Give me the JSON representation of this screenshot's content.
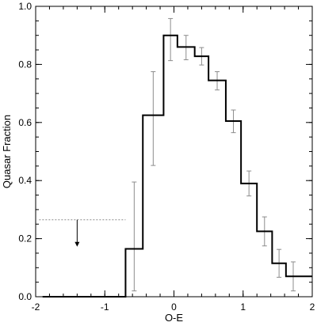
{
  "chart_data": {
    "type": "step",
    "xlabel": "O-E",
    "ylabel": "Quasar Fraction",
    "xlim": [
      -2,
      2
    ],
    "ylim": [
      0,
      1
    ],
    "xticks": [
      "-2",
      "-1",
      "0",
      "1",
      "2"
    ],
    "yticks": [
      "0.0",
      "0.2",
      "0.4",
      "0.6",
      "0.8",
      "1.0"
    ],
    "grid": false,
    "legend": "none",
    "bins": [
      {
        "x0": -1.9,
        "x1": -0.7,
        "y": 0.0,
        "err_lo": null,
        "err_hi": null
      },
      {
        "x0": -0.7,
        "x1": -0.45,
        "y": 0.165,
        "err_lo": 0.02,
        "err_hi": 0.395
      },
      {
        "x0": -0.45,
        "x1": -0.15,
        "y": 0.625,
        "err_lo": 0.452,
        "err_hi": 0.775
      },
      {
        "x0": -0.15,
        "x1": 0.05,
        "y": 0.9,
        "err_lo": 0.813,
        "err_hi": 0.958
      },
      {
        "x0": 0.05,
        "x1": 0.3,
        "y": 0.86,
        "err_lo": 0.816,
        "err_hi": 0.9
      },
      {
        "x0": 0.3,
        "x1": 0.5,
        "y": 0.828,
        "err_lo": 0.798,
        "err_hi": 0.858
      },
      {
        "x0": 0.5,
        "x1": 0.75,
        "y": 0.745,
        "err_lo": 0.712,
        "err_hi": 0.775
      },
      {
        "x0": 0.75,
        "x1": 0.97,
        "y": 0.605,
        "err_lo": 0.565,
        "err_hi": 0.643
      },
      {
        "x0": 0.97,
        "x1": 1.2,
        "y": 0.39,
        "err_lo": 0.347,
        "err_hi": 0.433
      },
      {
        "x0": 1.2,
        "x1": 1.42,
        "y": 0.225,
        "err_lo": 0.175,
        "err_hi": 0.275
      },
      {
        "x0": 1.42,
        "x1": 1.62,
        "y": 0.115,
        "err_lo": 0.067,
        "err_hi": 0.163
      },
      {
        "x0": 1.62,
        "x1": 1.83,
        "y": 0.07,
        "err_lo": 0.02,
        "err_hi": 0.12
      },
      {
        "x0": 1.83,
        "x1": 2.0,
        "y": 0.07,
        "err_lo": null,
        "err_hi": null
      }
    ],
    "upper_limit": {
      "x0": -1.95,
      "x1": -0.7,
      "y": 0.265,
      "arrow_x": -1.4,
      "arrow_to": 0.175
    }
  },
  "colors": {
    "line": "#000000",
    "errorbar": "#8c8c8c",
    "limit": "#8c8c8c",
    "background": "#ffffff"
  }
}
